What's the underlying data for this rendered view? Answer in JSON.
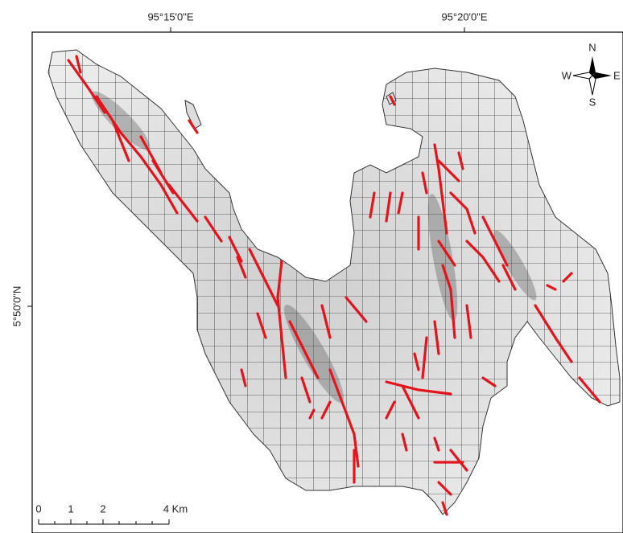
{
  "graticule": {
    "top_labels": [
      "95°15'0\"E",
      "95°20'0\"E"
    ],
    "left_labels": [
      "5°50'0\"N"
    ]
  },
  "compass": {
    "north": "N",
    "east": "E",
    "south": "S",
    "west": "W"
  },
  "scale_bar": {
    "labels": [
      "0",
      "1",
      "2",
      "4 Km"
    ]
  }
}
